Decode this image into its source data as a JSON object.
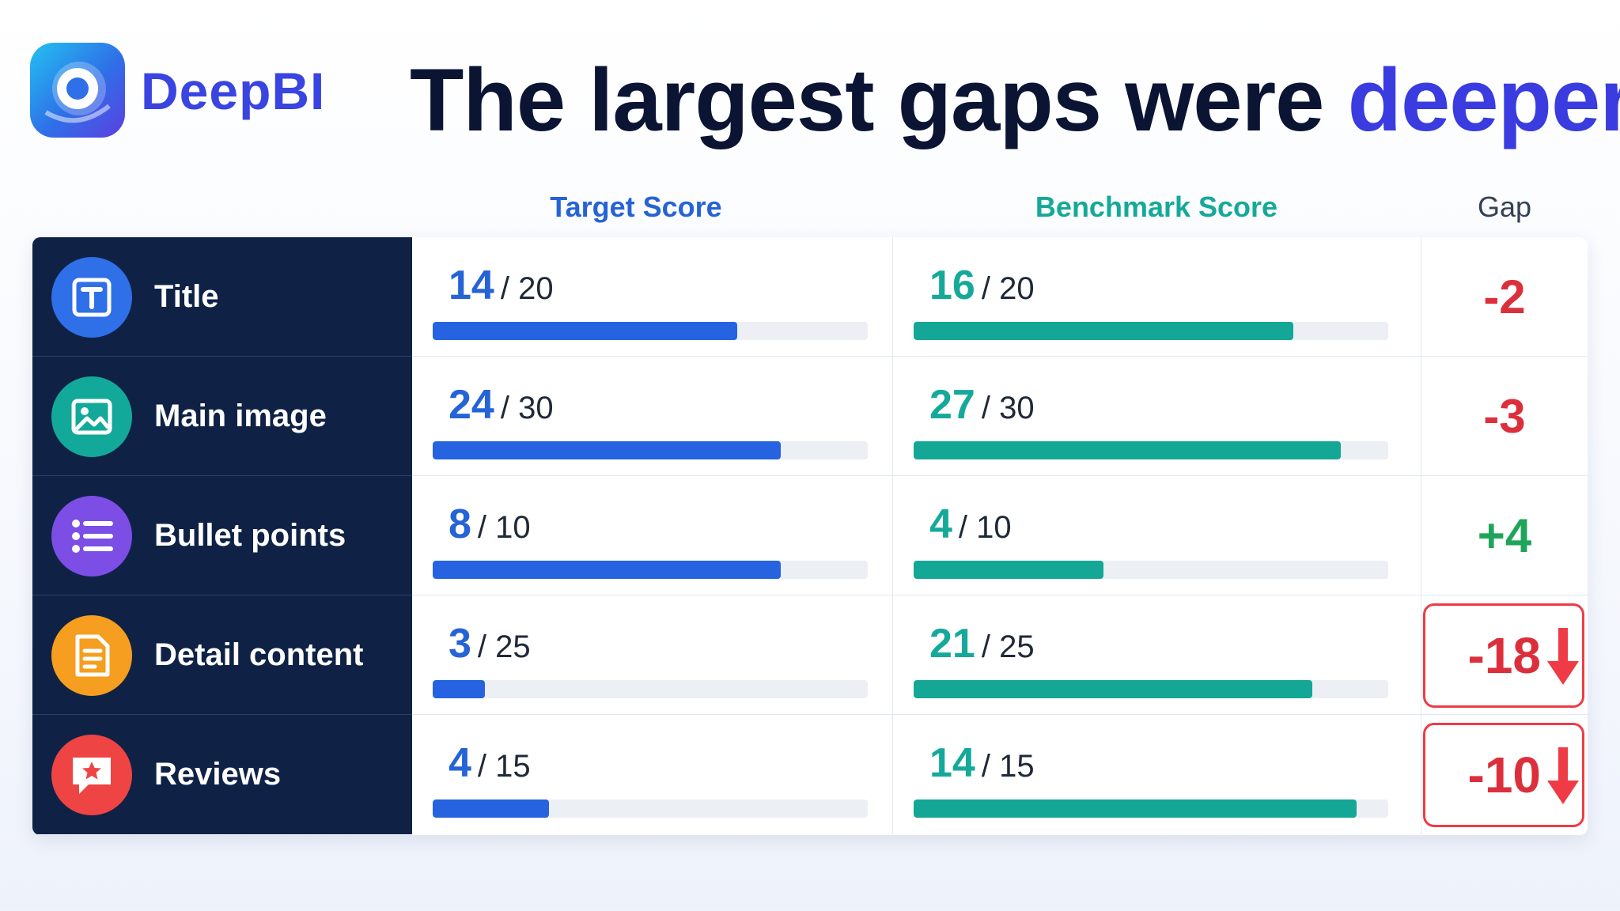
{
  "brand": {
    "name": "DeepBI",
    "logo_icon": "deepbi-logo-icon"
  },
  "headline": {
    "main": "The largest gaps were",
    "accent": "deeper"
  },
  "columns": {
    "target": "Target Score",
    "benchmark": "Benchmark Score",
    "gap": "Gap"
  },
  "rows": [
    {
      "label": "Title",
      "icon": "title-icon",
      "icon_color": "#2f6fe8",
      "target": "14",
      "target_max": "/ 20",
      "benchmark": "16",
      "benchmark_max": "/ 20",
      "gap": "-2",
      "highlight": false
    },
    {
      "label": "Main image",
      "icon": "image-icon",
      "icon_color": "#13a99a",
      "target": "24",
      "target_max": "/ 30",
      "benchmark": "27",
      "benchmark_max": "/ 30",
      "gap": "-3",
      "highlight": false
    },
    {
      "label": "Bullet points",
      "icon": "list-icon",
      "icon_color": "#7c4ee6",
      "target": "8",
      "target_max": "/ 10",
      "benchmark": "4",
      "benchmark_max": "/ 10",
      "gap": "+4",
      "highlight": false
    },
    {
      "label": "Detail content",
      "icon": "document-icon",
      "icon_color": "#f59e1f",
      "target": "3",
      "target_max": "/ 25",
      "benchmark": "21",
      "benchmark_max": "/ 25",
      "gap": "-18",
      "highlight": true
    },
    {
      "label": "Reviews",
      "icon": "review-star-icon",
      "icon_color": "#ef4444",
      "target": "4",
      "target_max": "/ 15",
      "benchmark": "14",
      "benchmark_max": "/ 15",
      "gap": "-10",
      "highlight": true
    }
  ],
  "chart_data": {
    "type": "bar",
    "categories": [
      "Title",
      "Main image",
      "Bullet points",
      "Detail content",
      "Reviews"
    ],
    "series": [
      {
        "name": "Target Score",
        "values": [
          14,
          24,
          8,
          3,
          4
        ]
      },
      {
        "name": "Benchmark Score",
        "values": [
          16,
          27,
          4,
          21,
          14
        ]
      }
    ],
    "max_values": [
      20,
      30,
      10,
      25,
      15
    ],
    "gap": [
      -2,
      -3,
      4,
      -18,
      -10
    ],
    "title": "The largest gaps were deeper",
    "colors": {
      "target": "#2563e0",
      "benchmark": "#14a796",
      "negative_gap": "#dc2f3c",
      "positive_gap": "#1fa55a"
    }
  }
}
